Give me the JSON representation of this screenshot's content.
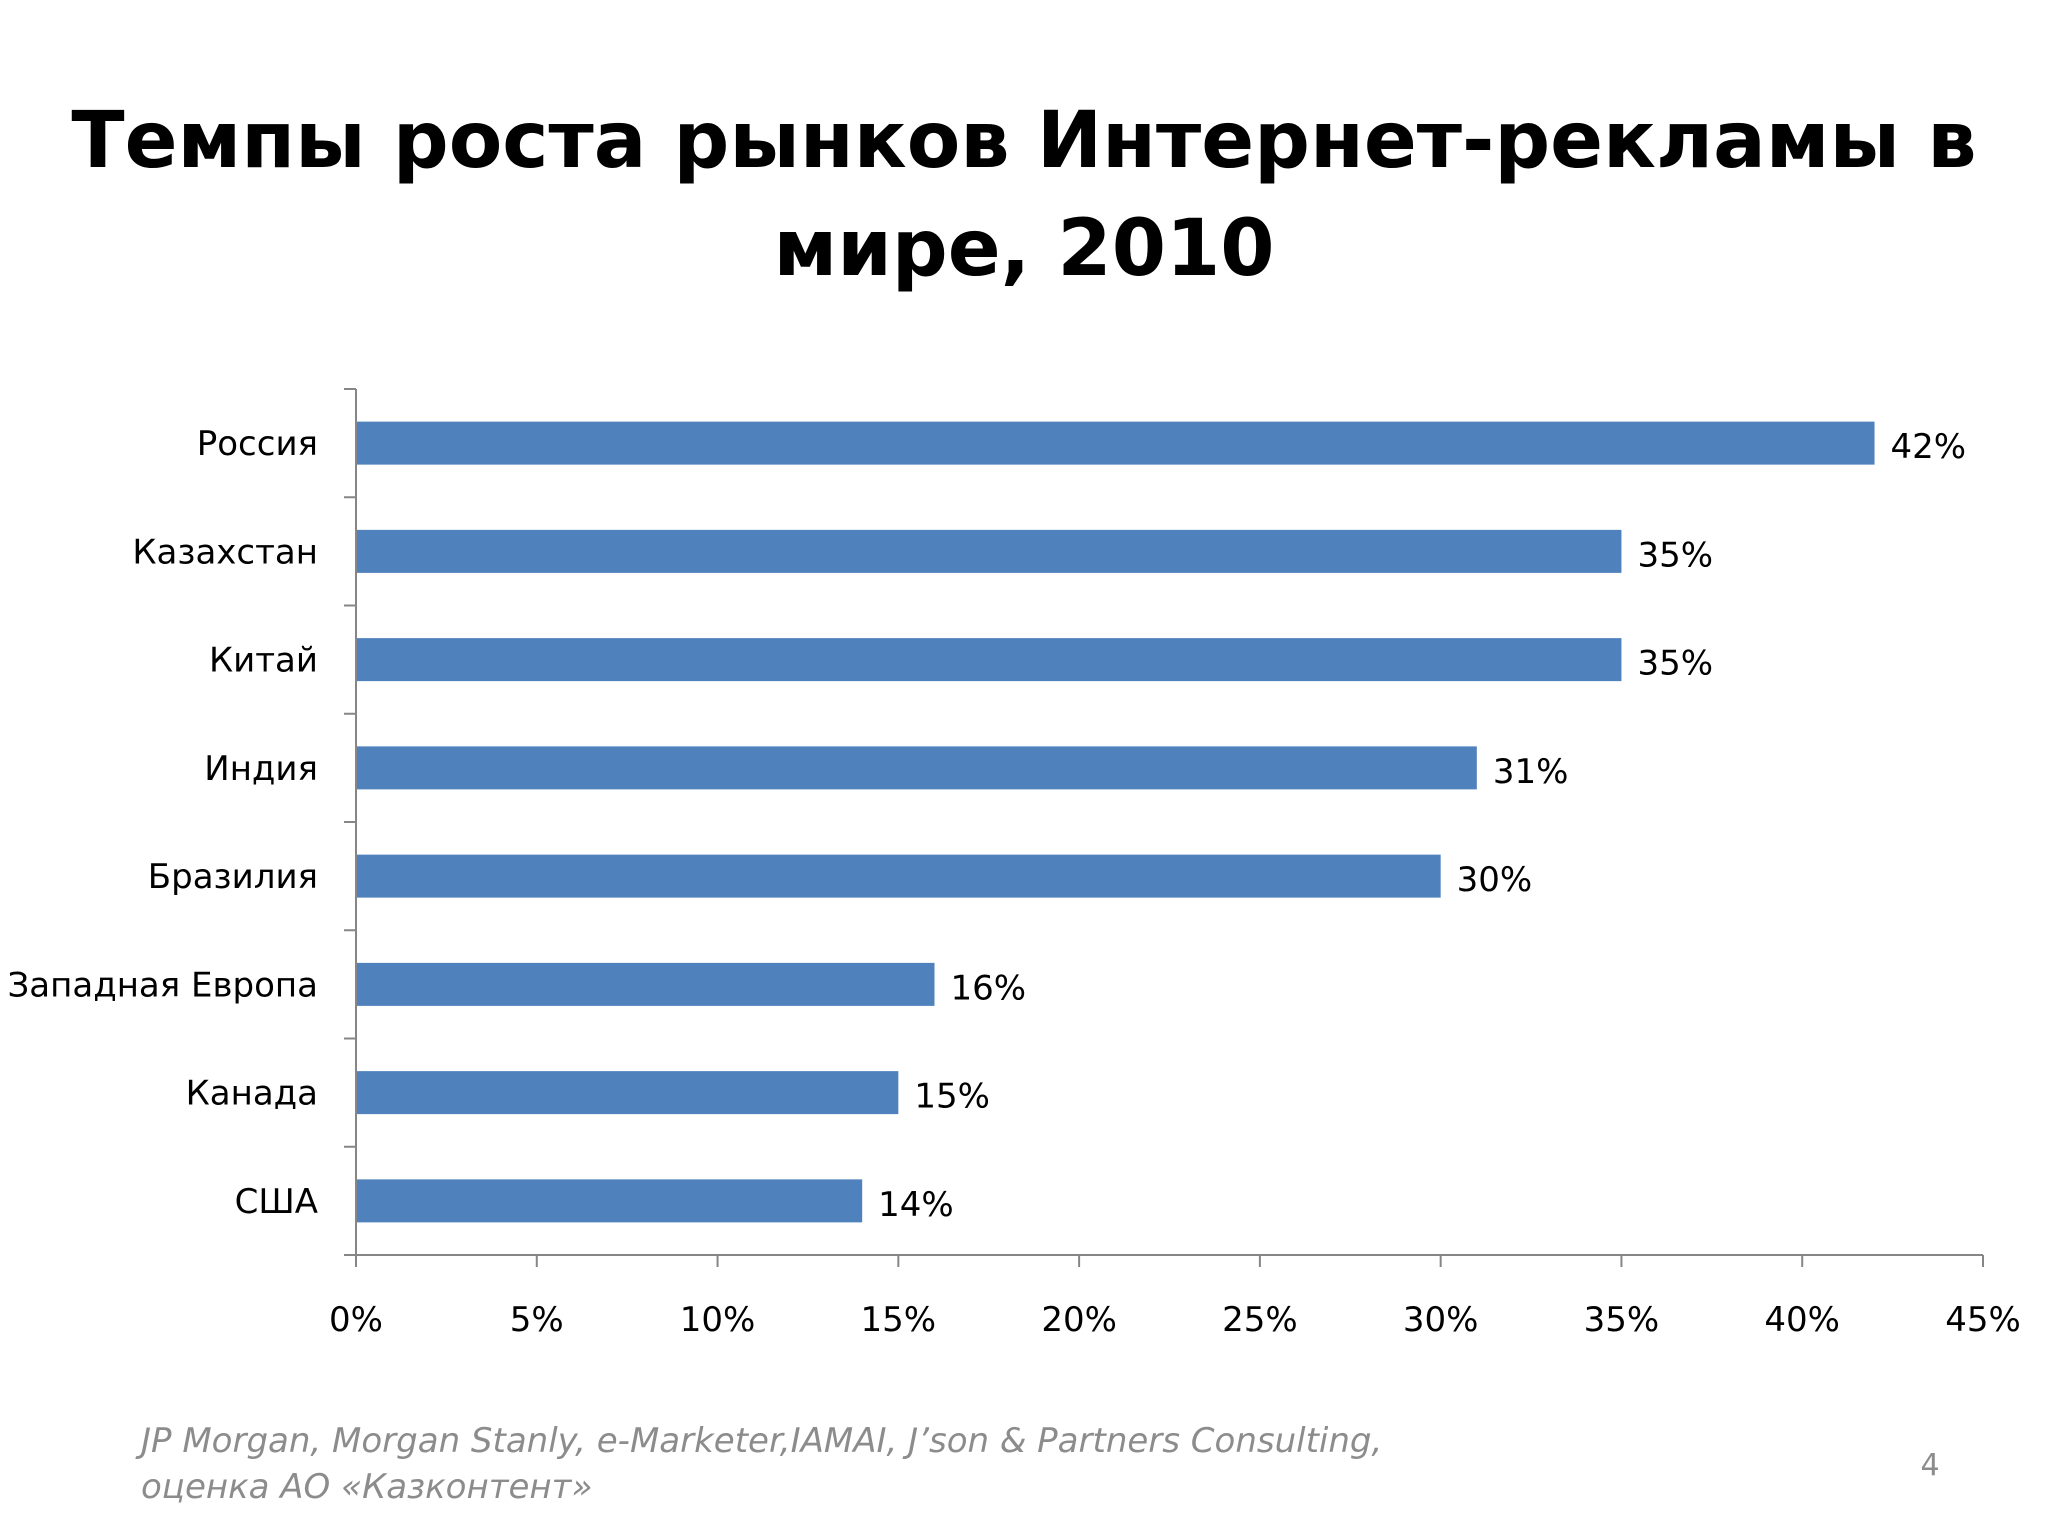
{
  "slide": {
    "title_line1": "Темпы роста рынков Интернет-рекламы в",
    "title_line2": "мире, 2010",
    "source_line1": "JP Morgan, Morgan Stanly, e-Marketer,IAMAI,  J’son & Partners Consulting,",
    "source_line2": "оценка АО «Казконтент»",
    "page_number": "4"
  },
  "chart_data": {
    "type": "bar",
    "orientation": "horizontal",
    "categories": [
      "Россия",
      "Казахстан",
      "Китай",
      "Индия",
      "Бразилия",
      "Западная Европа",
      "Канада",
      "США"
    ],
    "values": [
      42,
      35,
      35,
      31,
      30,
      16,
      15,
      14
    ],
    "value_labels": [
      "42%",
      "35%",
      "35%",
      "31%",
      "30%",
      "16%",
      "15%",
      "14%"
    ],
    "xlim": [
      0,
      45
    ],
    "x_ticks": [
      0,
      5,
      10,
      15,
      20,
      25,
      30,
      35,
      40,
      45
    ],
    "x_tick_labels": [
      "0%",
      "5%",
      "10%",
      "15%",
      "20%",
      "25%",
      "30%",
      "35%",
      "40%",
      "45%"
    ],
    "bar_color": "#4f81bd",
    "axis_color": "#868686",
    "grid": false,
    "legend": "none",
    "xlabel": "",
    "ylabel": ""
  }
}
